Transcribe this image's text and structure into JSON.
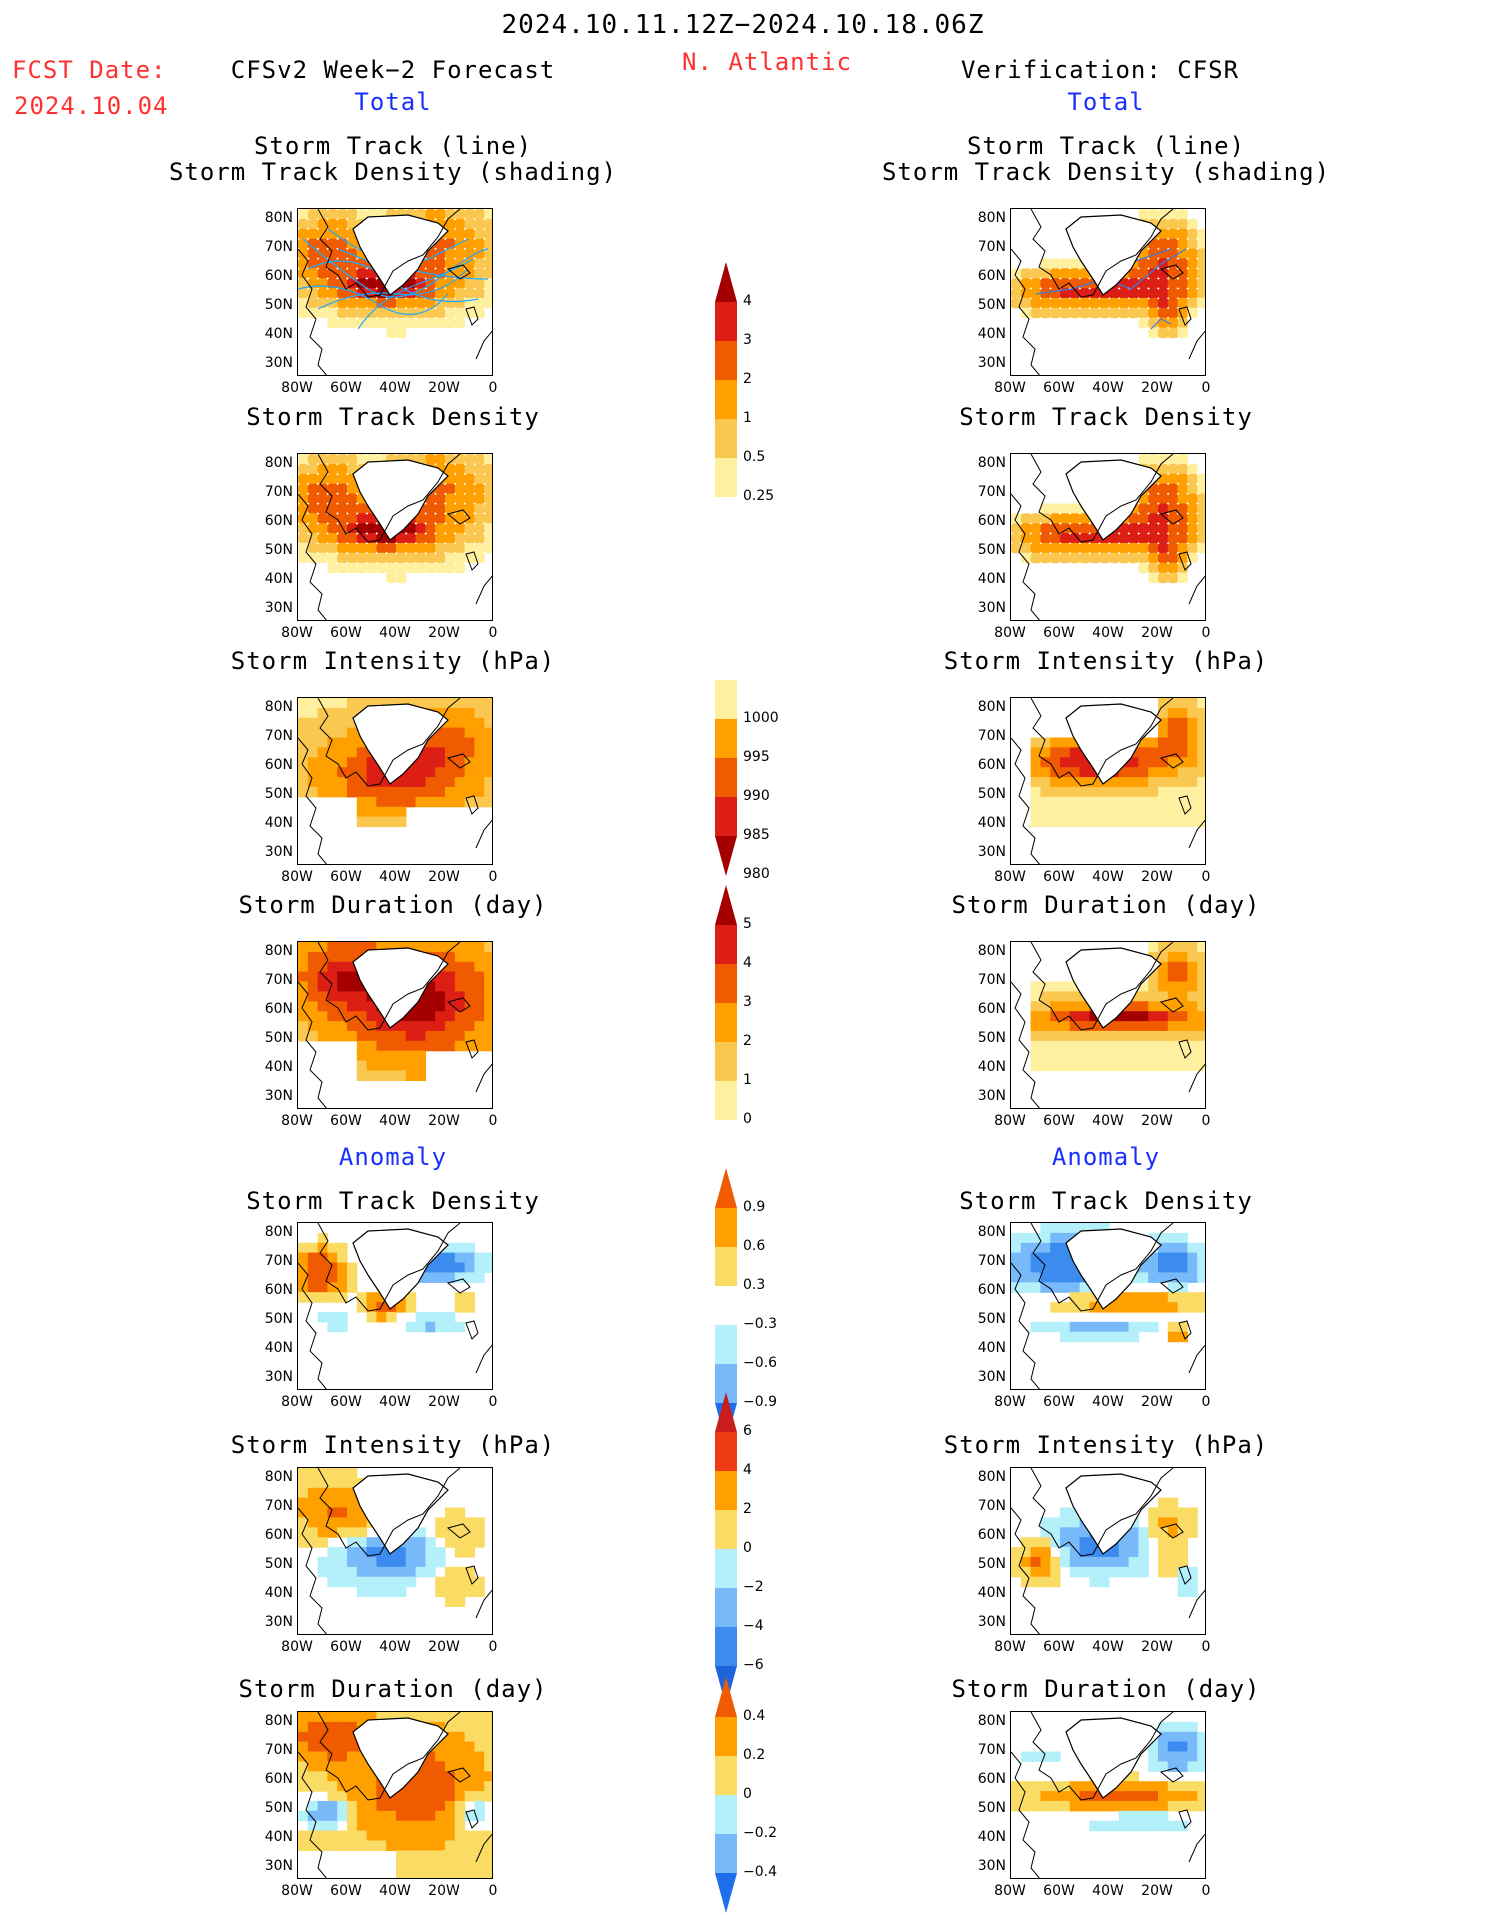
{
  "header": {
    "period": "2024.10.11.12Z−2024.10.18.06Z",
    "region": "N. Atlantic",
    "fcst_label": "FCST Date:",
    "fcst_date": "2024.10.04",
    "left_title": "CFSv2 Week−2 Forecast",
    "right_title": "Verification: CFSR"
  },
  "sections": {
    "total": "Total",
    "anomaly": "Anomaly"
  },
  "panel_titles": {
    "track_line": "Storm Track (line)",
    "track_density_shading": "Storm Track Density (shading)",
    "track_density": "Storm Track Density",
    "intensity": "Storm Intensity (hPa)",
    "duration": "Storm Duration (day)"
  },
  "axes": {
    "lat_ticks": [
      "80N",
      "70N",
      "60N",
      "50N",
      "40N",
      "30N"
    ],
    "lon_ticks": [
      "80W",
      "60W",
      "40W",
      "20W",
      "0"
    ]
  },
  "colorbars": {
    "density": {
      "labels": [
        "4",
        "3",
        "2",
        "1",
        "0.5",
        "0.25"
      ],
      "colors": [
        "#a50000",
        "#dc1e14",
        "#f05a00",
        "#ffa000",
        "#fac850",
        "#fff0a0"
      ]
    },
    "intensity": {
      "labels": [
        "1000",
        "995",
        "990",
        "985",
        "980"
      ],
      "colors": [
        "#fff0a0",
        "#ffa000",
        "#f05a00",
        "#dc1e14",
        "#a50000"
      ]
    },
    "duration": {
      "labels": [
        "5",
        "4",
        "3",
        "2",
        "1",
        "0"
      ],
      "colors": [
        "#a50000",
        "#dc1e14",
        "#f05a00",
        "#ffa000",
        "#fac850",
        "#fff0a0"
      ]
    },
    "density_anom": {
      "labels": [
        "0.9",
        "0.6",
        "0.3",
        "−0.3",
        "−0.6",
        "−0.9"
      ],
      "colors": [
        "#f05a00",
        "#ffa000",
        "#fadc64",
        "#ffffff",
        "#b4f0fa",
        "#78b9fa",
        "#1e6eeb"
      ]
    },
    "intensity_anom": {
      "labels": [
        "6",
        "4",
        "2",
        "0",
        "−2",
        "−4",
        "−6"
      ],
      "colors": [
        "#c81e1e",
        "#f03c14",
        "#ffa000",
        "#fadc64",
        "#b4f0fa",
        "#78b9fa",
        "#3c8cf0",
        "#1e64dc"
      ]
    },
    "duration_anom": {
      "labels": [
        "0.4",
        "0.2",
        "0",
        "−0.2",
        "−0.4"
      ],
      "colors": [
        "#f05a00",
        "#ffa000",
        "#fadc64",
        "#b4f0fa",
        "#78b9fa",
        "#1e6eeb"
      ]
    }
  }
}
